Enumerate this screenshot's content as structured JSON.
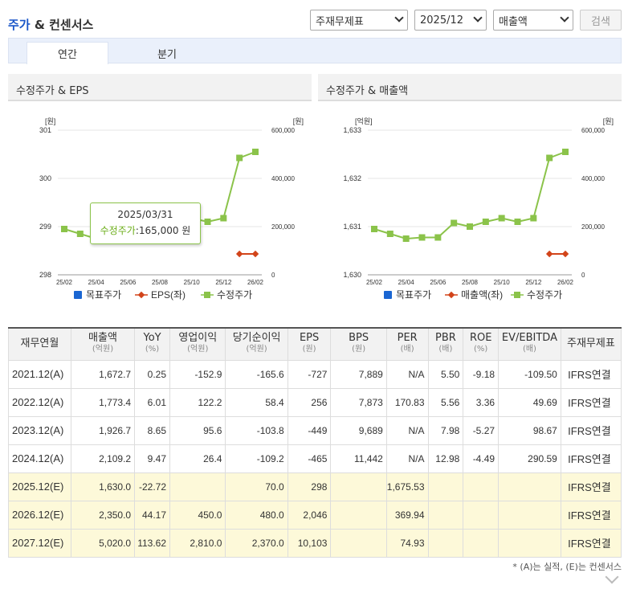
{
  "header": {
    "title_blue": "주가",
    "title_rest": " & 컨센서스",
    "select_statement": "주재무제표",
    "select_period": "2025/12",
    "select_metric": "매출액",
    "search_label": "검색"
  },
  "tabs": [
    {
      "label": "연간"
    },
    {
      "label": "분기"
    }
  ],
  "charts": [
    {
      "heading": "수정주가 & EPS",
      "left_unit": "[원]",
      "right_unit": "[원]",
      "left_ticks": [
        "301",
        "300",
        "299",
        "298"
      ],
      "right_ticks": [
        "600,000",
        "400,000",
        "200,000",
        "0"
      ],
      "x_ticks": [
        "25/02",
        "25/04",
        "25/06",
        "25/08",
        "25/10",
        "25/12",
        "26/02"
      ],
      "legend": [
        "목표주가",
        "EPS(좌)",
        "수정주가"
      ]
    },
    {
      "heading": "수정주가 & 매출액",
      "left_unit": "[억원]",
      "right_unit": "[원]",
      "left_ticks": [
        "1,633",
        "1,632",
        "1,631",
        "1,630"
      ],
      "right_ticks": [
        "600,000",
        "400,000",
        "200,000",
        "0"
      ],
      "x_ticks": [
        "25/02",
        "25/04",
        "25/06",
        "25/08",
        "25/10",
        "25/12",
        "26/02"
      ],
      "legend": [
        "목표주가",
        "매출액(좌)",
        "수정주가"
      ]
    }
  ],
  "chart_data": [
    {
      "type": "line",
      "x": [
        "25/02",
        "25/03",
        "25/04",
        "25/05",
        "25/06",
        "25/07",
        "25/08",
        "25/09",
        "25/10",
        "25/11",
        "25/12",
        "26/01",
        "26/02"
      ],
      "series": [
        {
          "name": "수정주가",
          "axis": "right",
          "values": [
            190000,
            170000,
            150000,
            155000,
            155000,
            215000,
            200000,
            220000,
            235000,
            220000,
            235000,
            485000,
            510000
          ]
        },
        {
          "name": "EPS(좌)",
          "axis": "left",
          "values": [
            null,
            null,
            null,
            null,
            null,
            null,
            null,
            null,
            null,
            null,
            null,
            298,
            298
          ]
        }
      ],
      "ylim_left": [
        298,
        301
      ],
      "ylim_right": [
        0,
        600000
      ],
      "legend": "bottom",
      "tooltip": {
        "date": "2025/03/31",
        "label": "수정주가",
        "value": ":165,000 원"
      }
    },
    {
      "type": "line",
      "x": [
        "25/02",
        "25/03",
        "25/04",
        "25/05",
        "25/06",
        "25/07",
        "25/08",
        "25/09",
        "25/10",
        "25/11",
        "25/12",
        "26/01",
        "26/02"
      ],
      "series": [
        {
          "name": "수정주가",
          "axis": "right",
          "values": [
            190000,
            170000,
            150000,
            155000,
            155000,
            215000,
            200000,
            220000,
            235000,
            220000,
            235000,
            485000,
            510000
          ]
        },
        {
          "name": "매출액(좌)",
          "axis": "left",
          "values": [
            null,
            null,
            null,
            null,
            null,
            null,
            null,
            null,
            null,
            null,
            null,
            1630,
            1630
          ]
        }
      ],
      "ylim_left": [
        1630,
        1633
      ],
      "ylim_right": [
        0,
        600000
      ],
      "legend": "bottom"
    }
  ],
  "colors": {
    "price": "#8bc34a",
    "eps": "#d2441a",
    "target": "#1a66d2"
  },
  "table": {
    "headers": [
      {
        "label": "재무연월",
        "unit": ""
      },
      {
        "label": "매출액",
        "unit": "(억원)"
      },
      {
        "label": "YoY",
        "unit": "(%)"
      },
      {
        "label": "영업이익",
        "unit": "(억원)"
      },
      {
        "label": "당기순이익",
        "unit": "(억원)"
      },
      {
        "label": "EPS",
        "unit": "(원)"
      },
      {
        "label": "BPS",
        "unit": "(원)"
      },
      {
        "label": "PER",
        "unit": "(배)"
      },
      {
        "label": "PBR",
        "unit": "(배)"
      },
      {
        "label": "ROE",
        "unit": "(%)"
      },
      {
        "label": "EV/EBITDA",
        "unit": "(배)"
      },
      {
        "label": "주재무제표",
        "unit": ""
      }
    ],
    "rows": [
      {
        "est": false,
        "cells": [
          "2021.12(A)",
          "1,672.7",
          "0.25",
          "-152.9",
          "-165.6",
          "-727",
          "7,889",
          "N/A",
          "5.50",
          "-9.18",
          "-109.50",
          "IFRS연결"
        ]
      },
      {
        "est": false,
        "cells": [
          "2022.12(A)",
          "1,773.4",
          "6.01",
          "122.2",
          "58.4",
          "256",
          "7,873",
          "170.83",
          "5.56",
          "3.36",
          "49.69",
          "IFRS연결"
        ]
      },
      {
        "est": false,
        "cells": [
          "2023.12(A)",
          "1,926.7",
          "8.65",
          "95.6",
          "-103.8",
          "-449",
          "9,689",
          "N/A",
          "7.98",
          "-5.27",
          "98.67",
          "IFRS연결"
        ]
      },
      {
        "est": false,
        "cells": [
          "2024.12(A)",
          "2,109.2",
          "9.47",
          "26.4",
          "-109.2",
          "-465",
          "11,442",
          "N/A",
          "12.98",
          "-4.49",
          "290.59",
          "IFRS연결"
        ]
      },
      {
        "est": true,
        "cells": [
          "2025.12(E)",
          "1,630.0",
          "-22.72",
          "",
          "70.0",
          "298",
          "",
          "1,675.53",
          "",
          "",
          "",
          "IFRS연결"
        ]
      },
      {
        "est": true,
        "cells": [
          "2026.12(E)",
          "2,350.0",
          "44.17",
          "450.0",
          "480.0",
          "2,046",
          "",
          "369.94",
          "",
          "",
          "",
          "IFRS연결"
        ]
      },
      {
        "est": true,
        "cells": [
          "2027.12(E)",
          "5,020.0",
          "113.62",
          "2,810.0",
          "2,370.0",
          "10,103",
          "",
          "74.93",
          "",
          "",
          "",
          "IFRS연결"
        ]
      }
    ]
  },
  "footnote": "* (A)는 실적, (E)는 컨센서스"
}
